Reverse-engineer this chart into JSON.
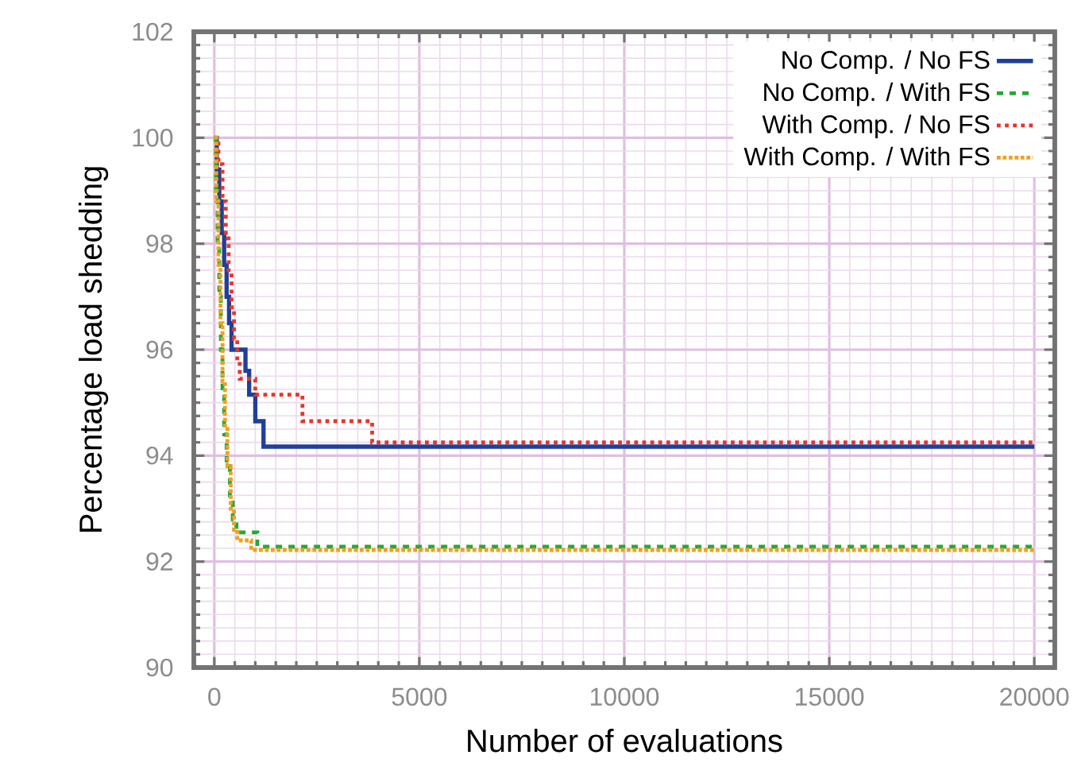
{
  "chart_data": {
    "type": "step",
    "xlabel": "Number of evaluations",
    "ylabel": "Percentage load shedding",
    "xlim": [
      -500,
      20500
    ],
    "ylim": [
      90,
      102
    ],
    "xticks": [
      0,
      5000,
      10000,
      15000,
      20000
    ],
    "yticks": [
      90,
      92,
      94,
      96,
      98,
      100,
      102
    ],
    "grid": true,
    "legend": "top right",
    "series": [
      {
        "name": "No Comp. / No FS",
        "color": "#1f3f99",
        "line_style": "solid",
        "x": [
          0,
          60,
          120,
          180,
          240,
          300,
          360,
          420,
          760,
          850,
          1000,
          1200,
          20000
        ],
        "values": [
          100,
          99.4,
          98.8,
          98.2,
          97.6,
          97.0,
          96.5,
          96.0,
          95.6,
          95.15,
          94.65,
          94.17,
          94.17
        ]
      },
      {
        "name": "No Comp. / With FS",
        "color": "#22aa33",
        "line_style": "dashed",
        "x": [
          0,
          40,
          80,
          120,
          160,
          200,
          240,
          300,
          380,
          450,
          540,
          1050,
          20000
        ],
        "values": [
          100,
          99,
          98,
          97,
          96,
          95.2,
          94.4,
          93.8,
          93.2,
          92.8,
          92.55,
          92.28,
          92.28
        ]
      },
      {
        "name": "With Comp. / No FS",
        "color": "#e8352a",
        "line_style": "dotted",
        "x": [
          0,
          100,
          200,
          280,
          350,
          420,
          480,
          560,
          620,
          1000,
          2150,
          3850,
          20000
        ],
        "values": [
          100,
          99.5,
          98.8,
          98.1,
          97.4,
          96.8,
          96.2,
          95.8,
          95.45,
          95.15,
          94.65,
          94.25,
          94.25
        ]
      },
      {
        "name": "With Comp. / With FS",
        "color": "#f0a020",
        "line_style": "densely dotted",
        "x": [
          0,
          50,
          100,
          150,
          200,
          260,
          320,
          400,
          480,
          560,
          900,
          20000
        ],
        "values": [
          100,
          98.8,
          97.6,
          96.5,
          95.4,
          94.5,
          93.8,
          93.0,
          92.6,
          92.4,
          92.22,
          92.22
        ]
      }
    ]
  }
}
